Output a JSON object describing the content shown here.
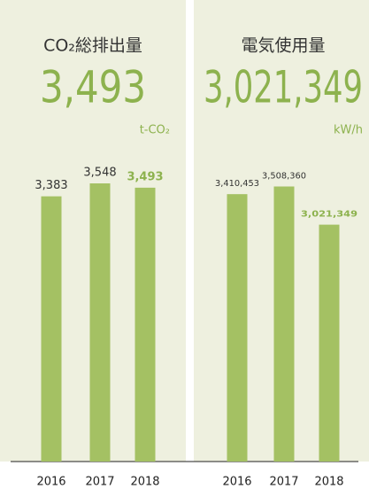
{
  "chart_data": [
    {
      "type": "bar",
      "title": "CO₂総排出量",
      "headline": "3,493",
      "unit": "t-CO₂",
      "categories": [
        "2016",
        "2017",
        "2018"
      ],
      "values": [
        3383,
        3548,
        3493
      ],
      "value_labels": [
        "3,383",
        "3,548",
        "3,493"
      ],
      "color": "#a4c163",
      "ylim": [
        0,
        4000
      ]
    },
    {
      "type": "bar",
      "title": "電気使用量",
      "headline": "3,021,349",
      "unit": "kW/h",
      "categories": [
        "2016",
        "2017",
        "2018"
      ],
      "values": [
        3410453,
        3508360,
        3021349
      ],
      "value_labels": [
        "3,410,453",
        "3,508,360",
        "3,021,349"
      ],
      "color": "#a4c163",
      "ylim": [
        0,
        4000000
      ]
    }
  ]
}
